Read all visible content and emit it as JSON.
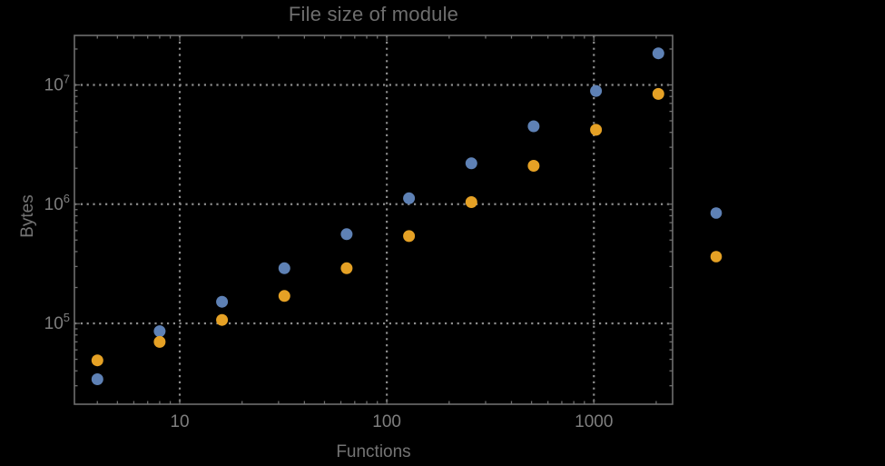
{
  "colors": {
    "background": "#000000",
    "frame": "#6e6e6e",
    "grid": "#8c8c8c",
    "tick_label": "#7e7e7e",
    "title": "#6e6e6e",
    "axis_label": "#747474",
    "series_blue": "#5e81b5",
    "series_orange": "#e5a125"
  },
  "chart_data": {
    "type": "scatter",
    "title": "File size of module",
    "xlabel": "Functions",
    "ylabel": "Bytes",
    "x_scale": "log",
    "y_scale": "log",
    "xlim": [
      3.1,
      2400
    ],
    "ylim": [
      21000,
      26000000
    ],
    "grid": "dotted lines at powers of 10, both axes",
    "legend_position": "right-outside, unlabeled markers",
    "x_ticks": [
      {
        "value": 10,
        "label": "10"
      },
      {
        "value": 100,
        "label": "100"
      },
      {
        "value": 1000,
        "label": "1000"
      }
    ],
    "y_ticks": [
      {
        "value": 100000,
        "mantissa": "10",
        "exponent": "5"
      },
      {
        "value": 1000000,
        "mantissa": "10",
        "exponent": "6"
      },
      {
        "value": 10000000,
        "mantissa": "10",
        "exponent": "7"
      }
    ],
    "x": [
      4,
      8,
      16,
      32,
      64,
      128,
      256,
      512,
      1024,
      2048
    ],
    "series": [
      {
        "name": "series-1-blue",
        "color": "#5e81b5",
        "values": [
          34000,
          86000,
          152000,
          290000,
          560000,
          1120000,
          2200000,
          4500000,
          8900000,
          18400000
        ]
      },
      {
        "name": "series-2-orange",
        "color": "#e5a125",
        "values": [
          49000,
          70000,
          107000,
          170000,
          290000,
          540000,
          1040000,
          2100000,
          4200000,
          8400000
        ]
      }
    ],
    "legend": {
      "markers": [
        {
          "series": "series-1-blue",
          "color": "#5e81b5"
        },
        {
          "series": "series-2-orange",
          "color": "#e5a125"
        }
      ]
    }
  }
}
